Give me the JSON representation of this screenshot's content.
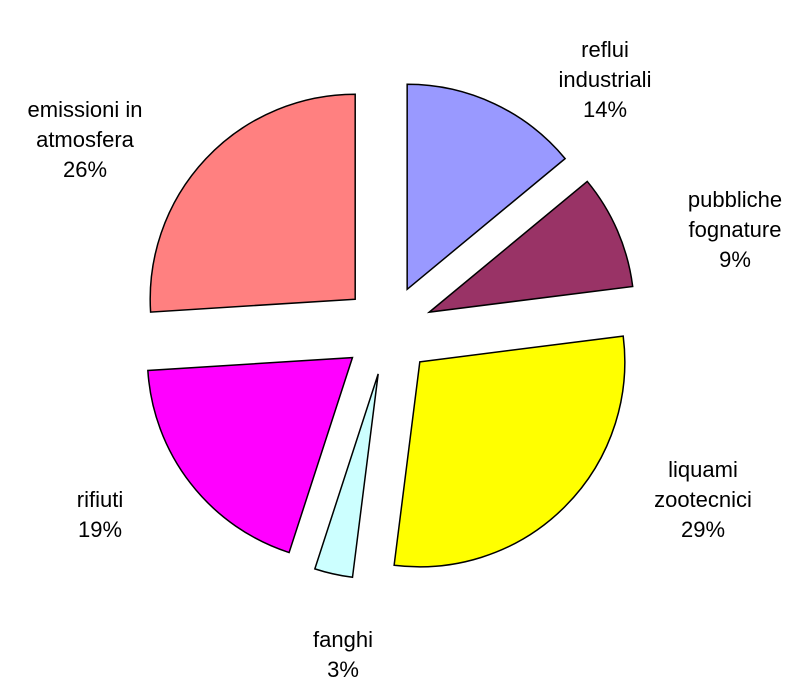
{
  "chart_data": {
    "type": "pie",
    "categories": [
      "reflui industriali",
      "pubbliche fognature",
      "liquami zootecnici",
      "fanghi",
      "rifiuti",
      "emissioni in atmosfera"
    ],
    "values": [
      14,
      9,
      29,
      3,
      19,
      26
    ],
    "value_labels": [
      "14%",
      "9%",
      "29%",
      "3%",
      "19%",
      "26%"
    ],
    "colors": [
      "#9999ff",
      "#993366",
      "#ffff00",
      "#ccffff",
      "#ff00ff",
      "#ff8080"
    ]
  }
}
